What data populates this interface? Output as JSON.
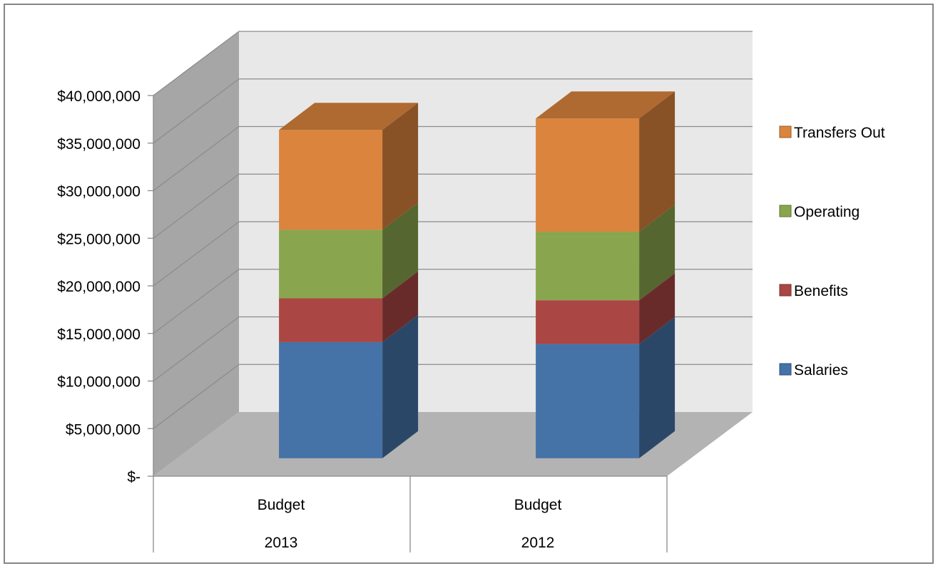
{
  "chart_data": {
    "type": "bar",
    "stacked": true,
    "three_d": true,
    "categories": [
      {
        "label": "Budget",
        "group": "2013"
      },
      {
        "label": "Budget",
        "group": "2012"
      }
    ],
    "series": [
      {
        "name": "Salaries",
        "values": [
          12200000,
          12000000
        ]
      },
      {
        "name": "Benefits",
        "values": [
          4600000,
          4600000
        ]
      },
      {
        "name": "Operating",
        "values": [
          7200000,
          7200000
        ]
      },
      {
        "name": "Transfers Out",
        "values": [
          10500000,
          11900000
        ]
      }
    ],
    "ylim": [
      0,
      40000000
    ],
    "yticks": [
      "$-",
      "$5,000,000",
      "$10,000,000",
      "$15,000,000",
      "$20,000,000",
      "$25,000,000",
      "$30,000,000",
      "$35,000,000",
      "$40,000,000"
    ],
    "legend_position": "right",
    "grid": true,
    "title": "",
    "xlabel": "",
    "ylabel": "",
    "colors": {
      "Salaries": "#4572A7",
      "Benefits": "#AA4643",
      "Operating": "#89A54E",
      "Transfers Out": "#DB843D",
      "back_wall": "#E8E8E8",
      "side_wall": "#A6A6A6",
      "floor": "#B3B3B3",
      "grid": "#8C8C8C",
      "border": "#868686"
    }
  }
}
